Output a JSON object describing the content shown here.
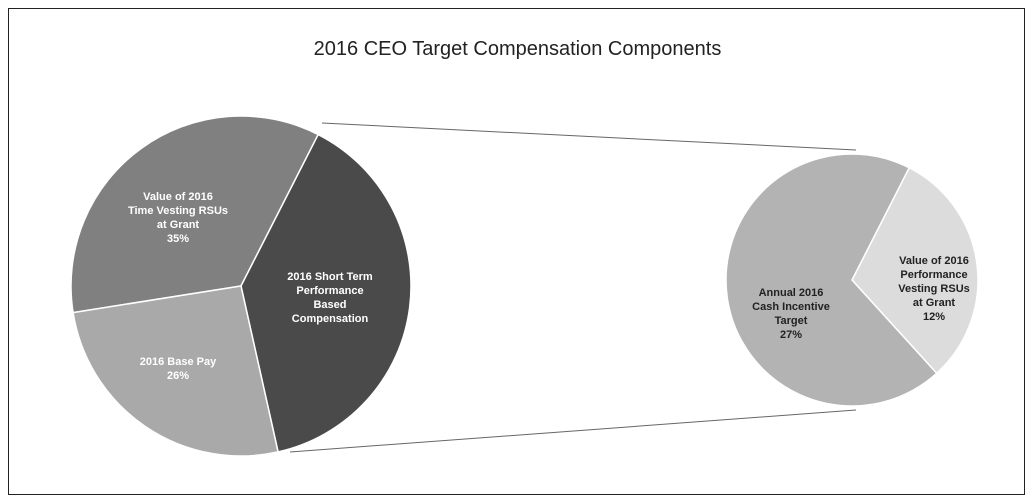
{
  "chart_data": {
    "type": "pie-of-pie",
    "title": "2016 CEO Target Compensation Components",
    "categories": [
      "Value of 2016\nTime Vesting RSUs\nat Grant",
      "2016 Short Term\nPerformance\nBased\nCompensation",
      "2016 Base Pay"
    ],
    "values": [
      35,
      39,
      26
    ],
    "value_labels": [
      "35%",
      null,
      "26%"
    ],
    "colors": [
      "#808080",
      "#4a4a4a",
      "#a9a9a9"
    ],
    "sub": {
      "categories": [
        "Value of 2016\nPerformance\nVesting RSUs\nat Grant",
        "Annual 2016\nCash Incentive\nTarget"
      ],
      "values": [
        12,
        27
      ],
      "value_labels": [
        "12%",
        "27%"
      ],
      "colors": [
        "#dcdcdc",
        "#b3b3b3"
      ]
    }
  }
}
